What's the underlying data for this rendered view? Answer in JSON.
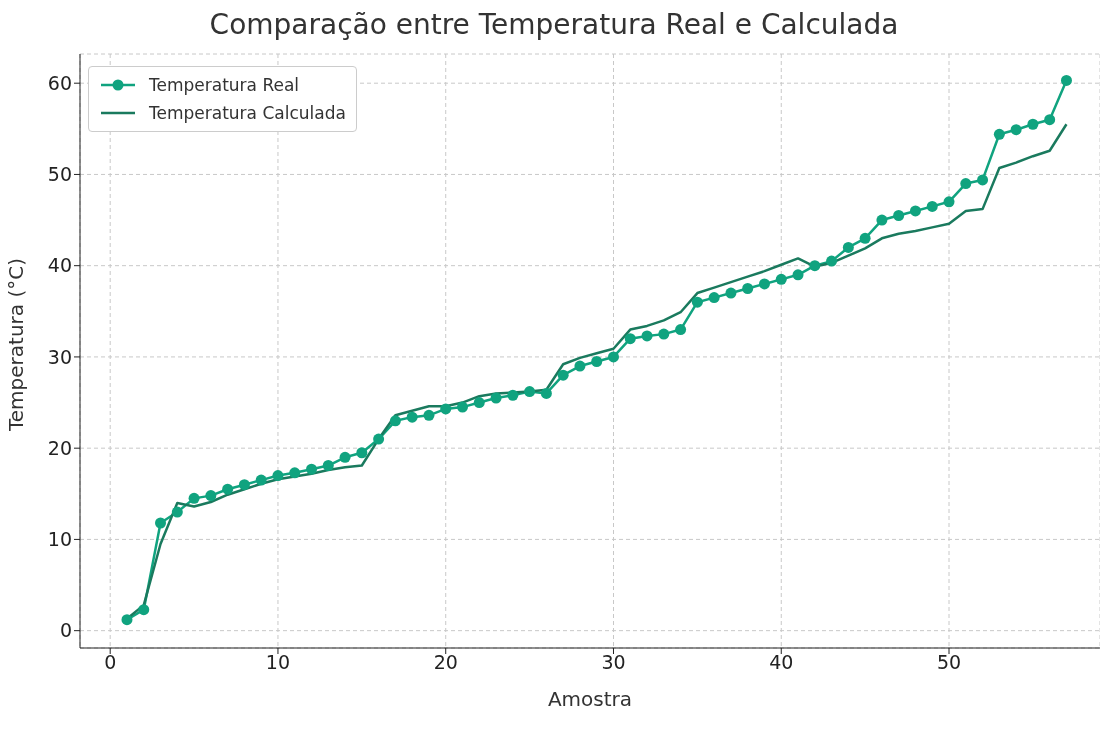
{
  "chart_data": {
    "type": "line",
    "title": "Comparação entre Temperatura Real e Calculada",
    "xlabel": "Amostra",
    "ylabel": "Temperatura (°C)",
    "x": [
      1,
      2,
      3,
      4,
      5,
      6,
      7,
      8,
      9,
      10,
      11,
      12,
      13,
      14,
      15,
      16,
      17,
      18,
      19,
      20,
      21,
      22,
      23,
      24,
      25,
      26,
      27,
      28,
      29,
      30,
      31,
      32,
      33,
      34,
      35,
      36,
      37,
      38,
      39,
      40,
      41,
      42,
      43,
      44,
      45,
      46,
      47,
      48,
      49,
      50,
      51,
      52,
      53,
      54,
      55,
      56,
      57
    ],
    "series": [
      {
        "name": "Temperatura Real",
        "color": "#10a37f",
        "marker": "circle",
        "values": [
          1.2,
          2.3,
          11.8,
          13,
          14.5,
          14.8,
          15.5,
          16,
          16.5,
          17,
          17.3,
          17.7,
          18.1,
          19,
          19.5,
          21,
          23,
          23.4,
          23.6,
          24.3,
          24.5,
          25,
          25.5,
          25.8,
          26.2,
          26,
          28,
          29,
          29.5,
          30,
          32,
          32.3,
          32.5,
          33,
          36,
          36.5,
          37,
          37.5,
          38,
          38.5,
          39,
          40,
          40.5,
          42,
          43,
          45,
          45.5,
          46,
          46.5,
          47,
          49,
          49.4,
          54.4,
          54.9,
          55.5,
          56,
          60.3
        ]
      },
      {
        "name": "Temperatura Calculada",
        "color": "#1a7a5e",
        "marker": "none",
        "values": [
          1.3,
          2.8,
          9.5,
          14,
          13.6,
          14.1,
          14.9,
          15.5,
          16.1,
          16.6,
          16.9,
          17.2,
          17.6,
          17.9,
          18.1,
          21,
          23.6,
          24.1,
          24.6,
          24.6,
          25,
          25.7,
          26,
          26.1,
          26.2,
          26.4,
          29.2,
          29.9,
          30.4,
          30.9,
          33,
          33.4,
          34,
          34.9,
          37,
          37.6,
          38.2,
          38.8,
          39.4,
          40.1,
          40.8,
          39.9,
          40.3,
          41.1,
          41.9,
          43,
          43.5,
          43.8,
          44.2,
          44.6,
          46,
          46.2,
          50.7,
          51.3,
          52,
          52.6,
          55.5
        ]
      }
    ],
    "xlim": [
      -1.8,
      59
    ],
    "ylim": [
      -1.9,
      63.2
    ],
    "xticks": [
      0,
      10,
      20,
      30,
      40,
      50
    ],
    "yticks": [
      0,
      10,
      20,
      30,
      40,
      50,
      60
    ],
    "grid": true,
    "legend": "top left",
    "line_style": "solid"
  }
}
